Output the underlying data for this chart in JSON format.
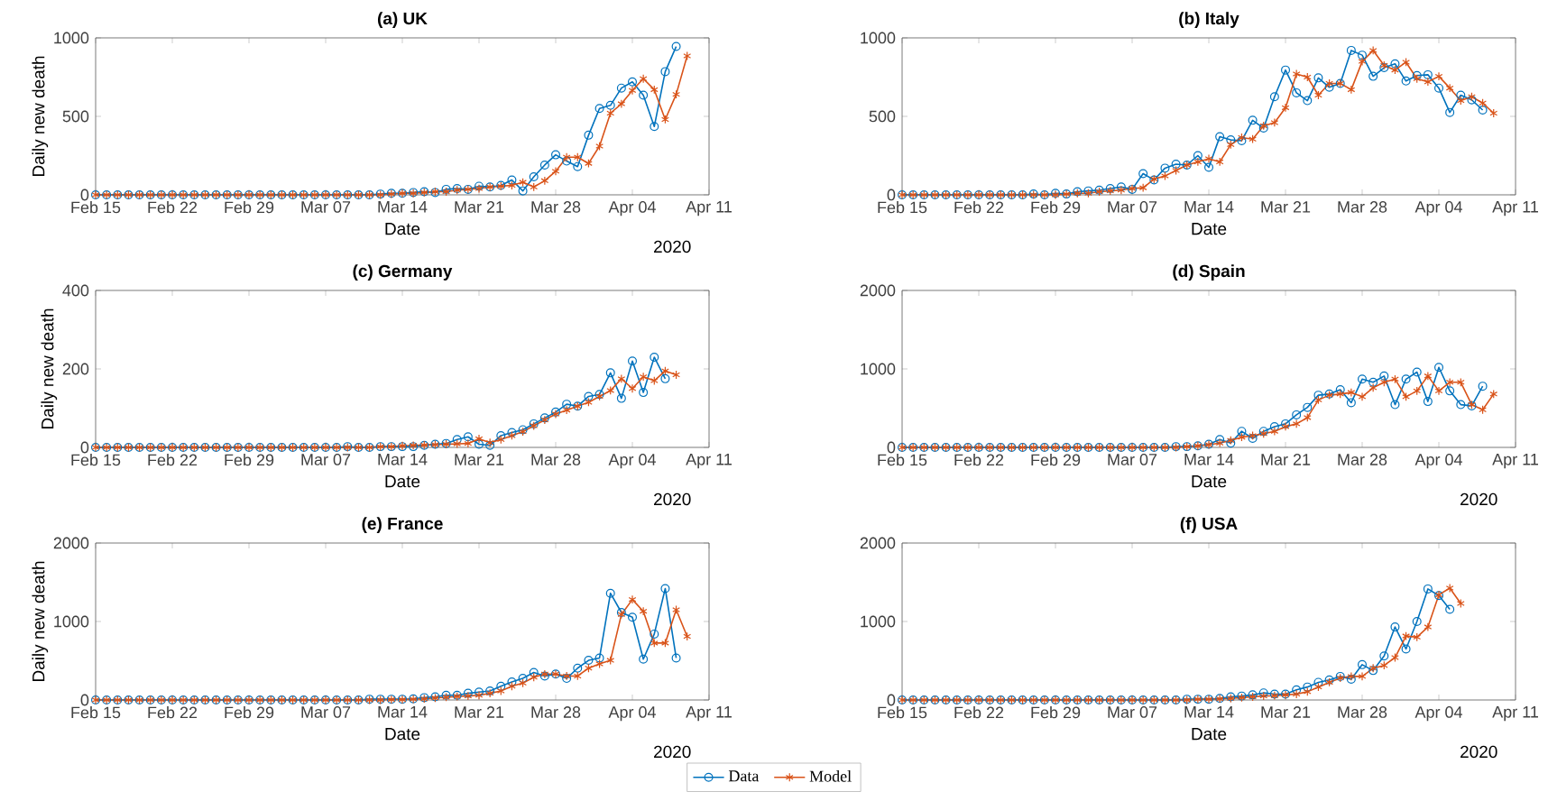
{
  "chart_data": [
    {
      "type": "line",
      "title": "(a) UK",
      "xlabel": "Date",
      "ylabel": "Daily new death",
      "annotations": [
        "2020"
      ],
      "x": [
        "2020-02-15",
        "2020-02-16",
        "2020-02-17",
        "2020-02-18",
        "2020-02-19",
        "2020-02-20",
        "2020-02-21",
        "2020-02-22",
        "2020-02-23",
        "2020-02-24",
        "2020-02-25",
        "2020-02-26",
        "2020-02-27",
        "2020-02-28",
        "2020-02-29",
        "2020-03-01",
        "2020-03-02",
        "2020-03-03",
        "2020-03-04",
        "2020-03-05",
        "2020-03-06",
        "2020-03-07",
        "2020-03-08",
        "2020-03-09",
        "2020-03-10",
        "2020-03-11",
        "2020-03-12",
        "2020-03-13",
        "2020-03-14",
        "2020-03-15",
        "2020-03-16",
        "2020-03-17",
        "2020-03-18",
        "2020-03-19",
        "2020-03-20",
        "2020-03-21",
        "2020-03-22",
        "2020-03-23",
        "2020-03-24",
        "2020-03-25",
        "2020-03-26",
        "2020-03-27",
        "2020-03-28",
        "2020-03-29",
        "2020-03-30",
        "2020-03-31",
        "2020-04-01",
        "2020-04-02",
        "2020-04-03",
        "2020-04-04",
        "2020-04-05",
        "2020-04-06",
        "2020-04-07",
        "2020-04-08",
        "2020-04-09"
      ],
      "xlim": [
        "2020-02-15",
        "2020-04-11"
      ],
      "xticks": [
        {
          "value": "2020-02-15",
          "label": "Feb 15"
        },
        {
          "value": "2020-02-22",
          "label": "Feb 22"
        },
        {
          "value": "2020-02-29",
          "label": "Feb 29"
        },
        {
          "value": "2020-03-07",
          "label": "Mar 07"
        },
        {
          "value": "2020-03-14",
          "label": "Mar 14"
        },
        {
          "value": "2020-03-21",
          "label": "Mar 21"
        },
        {
          "value": "2020-03-28",
          "label": "Mar 28"
        },
        {
          "value": "2020-04-04",
          "label": "Apr 04"
        },
        {
          "value": "2020-04-11",
          "label": "Apr 11"
        }
      ],
      "ylim": [
        0,
        1000
      ],
      "yticks": [
        0,
        500,
        1000
      ],
      "series": [
        {
          "color": "#0072bd",
          "marker": "circle",
          "values": [
            0,
            0,
            0,
            0,
            0,
            0,
            0,
            0,
            0,
            0,
            0,
            0,
            0,
            0,
            0,
            0,
            0,
            0,
            0,
            0,
            0,
            0,
            0,
            0,
            0,
            0,
            5,
            10,
            10,
            15,
            20,
            15,
            35,
            40,
            35,
            55,
            50,
            60,
            95,
            25,
            115,
            190,
            255,
            215,
            180,
            380,
            550,
            570,
            680,
            720,
            635,
            435,
            785,
            945,
            null
          ]
        },
        {
          "color": "#d95319",
          "marker": "cross",
          "values": [
            0,
            0,
            0,
            0,
            0,
            0,
            0,
            0,
            0,
            0,
            0,
            0,
            0,
            0,
            0,
            0,
            0,
            0,
            0,
            0,
            0,
            0,
            0,
            0,
            0,
            0,
            0,
            5,
            10,
            10,
            15,
            20,
            20,
            30,
            35,
            40,
            50,
            55,
            60,
            80,
            50,
            90,
            150,
            240,
            240,
            200,
            310,
            520,
            580,
            665,
            740,
            670,
            480,
            640,
            885
          ]
        }
      ]
    },
    {
      "type": "line",
      "title": "(b) Italy",
      "xlabel": "Date",
      "x": [
        "2020-02-15",
        "2020-02-16",
        "2020-02-17",
        "2020-02-18",
        "2020-02-19",
        "2020-02-20",
        "2020-02-21",
        "2020-02-22",
        "2020-02-23",
        "2020-02-24",
        "2020-02-25",
        "2020-02-26",
        "2020-02-27",
        "2020-02-28",
        "2020-02-29",
        "2020-03-01",
        "2020-03-02",
        "2020-03-03",
        "2020-03-04",
        "2020-03-05",
        "2020-03-06",
        "2020-03-07",
        "2020-03-08",
        "2020-03-09",
        "2020-03-10",
        "2020-03-11",
        "2020-03-12",
        "2020-03-13",
        "2020-03-14",
        "2020-03-15",
        "2020-03-16",
        "2020-03-17",
        "2020-03-18",
        "2020-03-19",
        "2020-03-20",
        "2020-03-21",
        "2020-03-22",
        "2020-03-23",
        "2020-03-24",
        "2020-03-25",
        "2020-03-26",
        "2020-03-27",
        "2020-03-28",
        "2020-03-29",
        "2020-03-30",
        "2020-03-31",
        "2020-04-01",
        "2020-04-02",
        "2020-04-03",
        "2020-04-04",
        "2020-04-05",
        "2020-04-06",
        "2020-04-07",
        "2020-04-08",
        "2020-04-09"
      ],
      "xlim": [
        "2020-02-15",
        "2020-04-11"
      ],
      "xticks": [
        {
          "value": "2020-02-15",
          "label": "Feb 15"
        },
        {
          "value": "2020-02-22",
          "label": "Feb 22"
        },
        {
          "value": "2020-02-29",
          "label": "Feb 29"
        },
        {
          "value": "2020-03-07",
          "label": "Mar 07"
        },
        {
          "value": "2020-03-14",
          "label": "Mar 14"
        },
        {
          "value": "2020-03-21",
          "label": "Mar 21"
        },
        {
          "value": "2020-03-28",
          "label": "Mar 28"
        },
        {
          "value": "2020-04-04",
          "label": "Apr 04"
        },
        {
          "value": "2020-04-11",
          "label": "Apr 11"
        }
      ],
      "ylim": [
        0,
        1000
      ],
      "yticks": [
        0,
        500,
        1000
      ],
      "series": [
        {
          "color": "#0072bd",
          "marker": "circle",
          "values": [
            0,
            0,
            0,
            0,
            0,
            0,
            0,
            0,
            0,
            0,
            0,
            0,
            5,
            0,
            10,
            5,
            20,
            25,
            30,
            40,
            50,
            35,
            135,
            95,
            170,
            195,
            190,
            250,
            175,
            370,
            350,
            345,
            475,
            425,
            625,
            795,
            650,
            600,
            745,
            685,
            710,
            920,
            890,
            755,
            810,
            835,
            725,
            760,
            765,
            680,
            525,
            635,
            605,
            540,
            null
          ]
        },
        {
          "color": "#d95319",
          "marker": "cross",
          "values": [
            0,
            0,
            0,
            0,
            0,
            0,
            0,
            0,
            0,
            0,
            0,
            0,
            0,
            0,
            0,
            5,
            10,
            10,
            20,
            25,
            30,
            40,
            45,
            100,
            120,
            155,
            190,
            210,
            230,
            210,
            320,
            365,
            355,
            440,
            460,
            555,
            770,
            750,
            635,
            710,
            710,
            670,
            850,
            920,
            825,
            795,
            845,
            740,
            720,
            755,
            680,
            600,
            625,
            585,
            520
          ]
        }
      ]
    },
    {
      "type": "line",
      "title": "(c) Germany",
      "xlabel": "Date",
      "ylabel": "Daily new death",
      "annotations": [
        "2020"
      ],
      "x": [
        "2020-02-15",
        "2020-02-16",
        "2020-02-17",
        "2020-02-18",
        "2020-02-19",
        "2020-02-20",
        "2020-02-21",
        "2020-02-22",
        "2020-02-23",
        "2020-02-24",
        "2020-02-25",
        "2020-02-26",
        "2020-02-27",
        "2020-02-28",
        "2020-02-29",
        "2020-03-01",
        "2020-03-02",
        "2020-03-03",
        "2020-03-04",
        "2020-03-05",
        "2020-03-06",
        "2020-03-07",
        "2020-03-08",
        "2020-03-09",
        "2020-03-10",
        "2020-03-11",
        "2020-03-12",
        "2020-03-13",
        "2020-03-14",
        "2020-03-15",
        "2020-03-16",
        "2020-03-17",
        "2020-03-18",
        "2020-03-19",
        "2020-03-20",
        "2020-03-21",
        "2020-03-22",
        "2020-03-23",
        "2020-03-24",
        "2020-03-25",
        "2020-03-26",
        "2020-03-27",
        "2020-03-28",
        "2020-03-29",
        "2020-03-30",
        "2020-03-31",
        "2020-04-01",
        "2020-04-02",
        "2020-04-03",
        "2020-04-04",
        "2020-04-05",
        "2020-04-06",
        "2020-04-07",
        "2020-04-08"
      ],
      "xlim": [
        "2020-02-15",
        "2020-04-11"
      ],
      "xticks": [
        {
          "value": "2020-02-15",
          "label": "Feb 15"
        },
        {
          "value": "2020-02-22",
          "label": "Feb 22"
        },
        {
          "value": "2020-02-29",
          "label": "Feb 29"
        },
        {
          "value": "2020-03-07",
          "label": "Mar 07"
        },
        {
          "value": "2020-03-14",
          "label": "Mar 14"
        },
        {
          "value": "2020-03-21",
          "label": "Mar 21"
        },
        {
          "value": "2020-03-28",
          "label": "Mar 28"
        },
        {
          "value": "2020-04-04",
          "label": "Apr 04"
        },
        {
          "value": "2020-04-11",
          "label": "Apr 11"
        }
      ],
      "ylim": [
        0,
        400
      ],
      "yticks": [
        0,
        200,
        400
      ],
      "series": [
        {
          "color": "#0072bd",
          "marker": "circle",
          "values": [
            0,
            0,
            0,
            0,
            0,
            0,
            0,
            0,
            0,
            0,
            0,
            0,
            0,
            0,
            0,
            0,
            0,
            0,
            0,
            0,
            0,
            0,
            0,
            2,
            0,
            0,
            2,
            2,
            2,
            2,
            5,
            8,
            10,
            20,
            27,
            8,
            5,
            30,
            38,
            45,
            60,
            75,
            90,
            110,
            105,
            130,
            135,
            190,
            125,
            220,
            140,
            230,
            175,
            null
          ]
        },
        {
          "color": "#d95319",
          "marker": "cross",
          "values": [
            0,
            0,
            0,
            0,
            0,
            0,
            0,
            0,
            0,
            0,
            0,
            0,
            0,
            0,
            0,
            0,
            0,
            0,
            0,
            0,
            0,
            0,
            0,
            0,
            0,
            0,
            2,
            2,
            4,
            5,
            6,
            7,
            8,
            9,
            10,
            22,
            12,
            20,
            30,
            40,
            55,
            70,
            85,
            95,
            105,
            115,
            130,
            145,
            175,
            150,
            180,
            170,
            195,
            185
          ]
        }
      ]
    },
    {
      "type": "line",
      "title": "(d) Spain",
      "xlabel": "Date",
      "annotations": [
        "2020"
      ],
      "x": [
        "2020-02-15",
        "2020-02-16",
        "2020-02-17",
        "2020-02-18",
        "2020-02-19",
        "2020-02-20",
        "2020-02-21",
        "2020-02-22",
        "2020-02-23",
        "2020-02-24",
        "2020-02-25",
        "2020-02-26",
        "2020-02-27",
        "2020-02-28",
        "2020-02-29",
        "2020-03-01",
        "2020-03-02",
        "2020-03-03",
        "2020-03-04",
        "2020-03-05",
        "2020-03-06",
        "2020-03-07",
        "2020-03-08",
        "2020-03-09",
        "2020-03-10",
        "2020-03-11",
        "2020-03-12",
        "2020-03-13",
        "2020-03-14",
        "2020-03-15",
        "2020-03-16",
        "2020-03-17",
        "2020-03-18",
        "2020-03-19",
        "2020-03-20",
        "2020-03-21",
        "2020-03-22",
        "2020-03-23",
        "2020-03-24",
        "2020-03-25",
        "2020-03-26",
        "2020-03-27",
        "2020-03-28",
        "2020-03-29",
        "2020-03-30",
        "2020-03-31",
        "2020-04-01",
        "2020-04-02",
        "2020-04-03",
        "2020-04-04",
        "2020-04-05",
        "2020-04-06",
        "2020-04-07",
        "2020-04-08",
        "2020-04-09"
      ],
      "xlim": [
        "2020-02-15",
        "2020-04-11"
      ],
      "xticks": [
        {
          "value": "2020-02-15",
          "label": "Feb 15"
        },
        {
          "value": "2020-02-22",
          "label": "Feb 22"
        },
        {
          "value": "2020-02-29",
          "label": "Feb 29"
        },
        {
          "value": "2020-03-07",
          "label": "Mar 07"
        },
        {
          "value": "2020-03-14",
          "label": "Mar 14"
        },
        {
          "value": "2020-03-21",
          "label": "Mar 21"
        },
        {
          "value": "2020-03-28",
          "label": "Mar 28"
        },
        {
          "value": "2020-04-04",
          "label": "Apr 04"
        },
        {
          "value": "2020-04-11",
          "label": "Apr 11"
        }
      ],
      "ylim": [
        0,
        2000
      ],
      "yticks": [
        0,
        1000,
        2000
      ],
      "series": [
        {
          "color": "#0072bd",
          "marker": "circle",
          "values": [
            0,
            0,
            0,
            0,
            0,
            0,
            0,
            0,
            0,
            0,
            0,
            0,
            0,
            0,
            0,
            0,
            0,
            0,
            0,
            0,
            0,
            0,
            0,
            0,
            0,
            10,
            10,
            20,
            40,
            100,
            55,
            205,
            115,
            205,
            265,
            300,
            415,
            510,
            665,
            680,
            735,
            570,
            870,
            830,
            910,
            545,
            870,
            960,
            585,
            1020,
            720,
            545,
            530,
            780,
            null
          ]
        },
        {
          "color": "#d95319",
          "marker": "cross",
          "values": [
            0,
            0,
            0,
            0,
            0,
            0,
            0,
            0,
            0,
            0,
            0,
            0,
            0,
            0,
            0,
            0,
            0,
            0,
            0,
            0,
            0,
            0,
            0,
            0,
            0,
            0,
            10,
            20,
            35,
            55,
            90,
            130,
            150,
            175,
            205,
            265,
            300,
            380,
            605,
            665,
            680,
            700,
            645,
            760,
            830,
            870,
            645,
            720,
            910,
            720,
            830,
            830,
            545,
            480,
            680
          ]
        }
      ]
    },
    {
      "type": "line",
      "title": "(e) France",
      "xlabel": "Date",
      "ylabel": "Daily new death",
      "annotations": [
        "2020"
      ],
      "x": [
        "2020-02-15",
        "2020-02-16",
        "2020-02-17",
        "2020-02-18",
        "2020-02-19",
        "2020-02-20",
        "2020-02-21",
        "2020-02-22",
        "2020-02-23",
        "2020-02-24",
        "2020-02-25",
        "2020-02-26",
        "2020-02-27",
        "2020-02-28",
        "2020-02-29",
        "2020-03-01",
        "2020-03-02",
        "2020-03-03",
        "2020-03-04",
        "2020-03-05",
        "2020-03-06",
        "2020-03-07",
        "2020-03-08",
        "2020-03-09",
        "2020-03-10",
        "2020-03-11",
        "2020-03-12",
        "2020-03-13",
        "2020-03-14",
        "2020-03-15",
        "2020-03-16",
        "2020-03-17",
        "2020-03-18",
        "2020-03-19",
        "2020-03-20",
        "2020-03-21",
        "2020-03-22",
        "2020-03-23",
        "2020-03-24",
        "2020-03-25",
        "2020-03-26",
        "2020-03-27",
        "2020-03-28",
        "2020-03-29",
        "2020-03-30",
        "2020-03-31",
        "2020-04-01",
        "2020-04-02",
        "2020-04-03",
        "2020-04-04",
        "2020-04-05",
        "2020-04-06",
        "2020-04-07",
        "2020-04-08",
        "2020-04-09"
      ],
      "xlim": [
        "2020-02-15",
        "2020-04-11"
      ],
      "xticks": [
        {
          "value": "2020-02-15",
          "label": "Feb 15"
        },
        {
          "value": "2020-02-22",
          "label": "Feb 22"
        },
        {
          "value": "2020-02-29",
          "label": "Feb 29"
        },
        {
          "value": "2020-03-07",
          "label": "Mar 07"
        },
        {
          "value": "2020-03-14",
          "label": "Mar 14"
        },
        {
          "value": "2020-03-21",
          "label": "Mar 21"
        },
        {
          "value": "2020-03-28",
          "label": "Mar 28"
        },
        {
          "value": "2020-04-04",
          "label": "Apr 04"
        },
        {
          "value": "2020-04-11",
          "label": "Apr 11"
        }
      ],
      "ylim": [
        0,
        2000
      ],
      "yticks": [
        0,
        1000,
        2000
      ],
      "series": [
        {
          "color": "#0072bd",
          "marker": "circle",
          "values": [
            0,
            0,
            0,
            0,
            0,
            0,
            0,
            0,
            0,
            0,
            0,
            0,
            0,
            0,
            0,
            0,
            0,
            0,
            0,
            0,
            0,
            0,
            0,
            0,
            0,
            10,
            10,
            10,
            10,
            15,
            30,
            40,
            60,
            60,
            85,
            100,
            115,
            175,
            230,
            275,
            350,
            305,
            330,
            275,
            405,
            505,
            535,
            1360,
            1115,
            1055,
            520,
            840,
            1420,
            535,
            null
          ]
        },
        {
          "color": "#d95319",
          "marker": "cross",
          "values": [
            0,
            0,
            0,
            0,
            0,
            0,
            0,
            0,
            0,
            0,
            0,
            0,
            0,
            0,
            0,
            0,
            0,
            0,
            0,
            0,
            0,
            0,
            0,
            0,
            0,
            0,
            0,
            5,
            5,
            10,
            15,
            25,
            35,
            45,
            50,
            60,
            85,
            115,
            175,
            215,
            290,
            330,
            330,
            305,
            305,
            405,
            460,
            505,
            1090,
            1280,
            1130,
            725,
            725,
            1150,
            810
          ]
        }
      ]
    },
    {
      "type": "line",
      "title": "(f) USA",
      "xlabel": "Date",
      "annotations": [
        "2020"
      ],
      "legend": "bottom",
      "x": [
        "2020-02-15",
        "2020-02-16",
        "2020-02-17",
        "2020-02-18",
        "2020-02-19",
        "2020-02-20",
        "2020-02-21",
        "2020-02-22",
        "2020-02-23",
        "2020-02-24",
        "2020-02-25",
        "2020-02-26",
        "2020-02-27",
        "2020-02-28",
        "2020-02-29",
        "2020-03-01",
        "2020-03-02",
        "2020-03-03",
        "2020-03-04",
        "2020-03-05",
        "2020-03-06",
        "2020-03-07",
        "2020-03-08",
        "2020-03-09",
        "2020-03-10",
        "2020-03-11",
        "2020-03-12",
        "2020-03-13",
        "2020-03-14",
        "2020-03-15",
        "2020-03-16",
        "2020-03-17",
        "2020-03-18",
        "2020-03-19",
        "2020-03-20",
        "2020-03-21",
        "2020-03-22",
        "2020-03-23",
        "2020-03-24",
        "2020-03-25",
        "2020-03-26",
        "2020-03-27",
        "2020-03-28",
        "2020-03-29",
        "2020-03-30",
        "2020-03-31",
        "2020-04-01",
        "2020-04-02",
        "2020-04-03",
        "2020-04-04",
        "2020-04-05",
        "2020-04-06"
      ],
      "xlim": [
        "2020-02-15",
        "2020-04-11"
      ],
      "xticks": [
        {
          "value": "2020-02-15",
          "label": "Feb 15"
        },
        {
          "value": "2020-02-22",
          "label": "Feb 22"
        },
        {
          "value": "2020-02-29",
          "label": "Feb 29"
        },
        {
          "value": "2020-03-07",
          "label": "Mar 07"
        },
        {
          "value": "2020-03-14",
          "label": "Mar 14"
        },
        {
          "value": "2020-03-21",
          "label": "Mar 21"
        },
        {
          "value": "2020-03-28",
          "label": "Mar 28"
        },
        {
          "value": "2020-04-04",
          "label": "Apr 04"
        },
        {
          "value": "2020-04-11",
          "label": "Apr 11"
        }
      ],
      "ylim": [
        0,
        2000
      ],
      "yticks": [
        0,
        1000,
        2000
      ],
      "series": [
        {
          "name": "Data",
          "color": "#0072bd",
          "marker": "circle",
          "values": [
            0,
            0,
            0,
            0,
            0,
            0,
            0,
            0,
            0,
            0,
            0,
            0,
            0,
            0,
            0,
            0,
            0,
            0,
            0,
            0,
            0,
            0,
            0,
            0,
            0,
            0,
            10,
            10,
            10,
            20,
            40,
            50,
            65,
            90,
            75,
            75,
            130,
            165,
            225,
            255,
            300,
            265,
            450,
            375,
            560,
            930,
            650,
            1000,
            1415,
            1330,
            1155,
            null
          ]
        },
        {
          "name": "Model",
          "color": "#d95319",
          "marker": "cross",
          "values": [
            0,
            0,
            0,
            0,
            0,
            0,
            0,
            0,
            0,
            0,
            0,
            0,
            0,
            0,
            0,
            0,
            0,
            0,
            0,
            0,
            0,
            0,
            0,
            0,
            0,
            0,
            0,
            10,
            10,
            15,
            20,
            30,
            40,
            50,
            55,
            65,
            75,
            105,
            165,
            225,
            280,
            300,
            300,
            405,
            440,
            540,
            815,
            800,
            930,
            1340,
            1425,
            1230
          ]
        }
      ]
    }
  ]
}
